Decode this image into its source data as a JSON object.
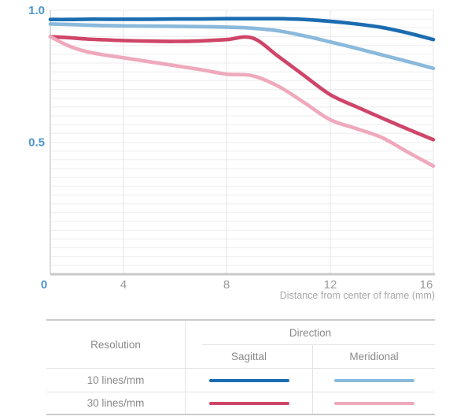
{
  "chart_data": {
    "type": "line",
    "title": "",
    "xlabel": "Distance from center of frame (mm)",
    "ylabel": "",
    "xlim": [
      0,
      16
    ],
    "ylim": [
      0,
      1.0
    ],
    "grid": true,
    "legend_position": "table-below",
    "x_ticks": [
      0,
      4,
      8,
      12,
      16
    ],
    "x_tick_labels": [
      "0",
      "4",
      "8",
      "12",
      "16"
    ],
    "y_ticks": [
      1.0,
      0.5
    ],
    "y_tick_labels": [
      "1.0",
      "0.5"
    ],
    "x": [
      0,
      1,
      2,
      3,
      4,
      5,
      6,
      7,
      8,
      9,
      10,
      11,
      12,
      13,
      14,
      15,
      16
    ],
    "series": [
      {
        "name": "10 lines/mm Sagittal",
        "color": "#1b6cb1",
        "values": [
          0.965,
          0.965,
          0.966,
          0.966,
          0.966,
          0.966,
          0.967,
          0.967,
          0.968,
          0.968,
          0.968,
          0.965,
          0.958,
          0.948,
          0.935,
          0.914,
          0.889
        ]
      },
      {
        "name": "10 lines/mm Meridional",
        "color": "#8ab9dc",
        "values": [
          0.948,
          0.946,
          0.944,
          0.942,
          0.941,
          0.94,
          0.939,
          0.938,
          0.936,
          0.932,
          0.922,
          0.903,
          0.88,
          0.856,
          0.831,
          0.806,
          0.78
        ]
      },
      {
        "name": "30 lines/mm Sagittal",
        "color": "#cf4568",
        "values": [
          0.9,
          0.896,
          0.891,
          0.888,
          0.885,
          0.883,
          0.882,
          0.884,
          0.889,
          0.895,
          0.825,
          0.752,
          0.68,
          0.635,
          0.592,
          0.55,
          0.51
        ]
      },
      {
        "name": "30 lines/mm Meridional",
        "color": "#efa9bc",
        "values": [
          0.9,
          0.865,
          0.843,
          0.83,
          0.82,
          0.805,
          0.79,
          0.775,
          0.758,
          0.752,
          0.712,
          0.65,
          0.585,
          0.552,
          0.518,
          0.463,
          0.41
        ]
      }
    ]
  },
  "colors": {
    "axis_tick_blue": "#4d95cc",
    "axis_tick_gray": "#9a9a9a",
    "axis_title_gray": "#a8a8a8",
    "grid_horizontal": "#eeeeee",
    "grid_vertical": "#e6e6e6",
    "axis_line": "#c8c8c8"
  },
  "legend_table": {
    "resolution_header": "Resolution",
    "direction_header": "Direction",
    "sagittal_header": "Sagittal",
    "meridional_header": "Meridional",
    "rows": [
      {
        "label": "10 lines/mm",
        "sagittal_color": "#1b6cb1",
        "meridional_color": "#8ab9dc"
      },
      {
        "label": "30 lines/mm",
        "sagittal_color": "#cf4568",
        "meridional_color": "#efa9bc"
      }
    ]
  }
}
